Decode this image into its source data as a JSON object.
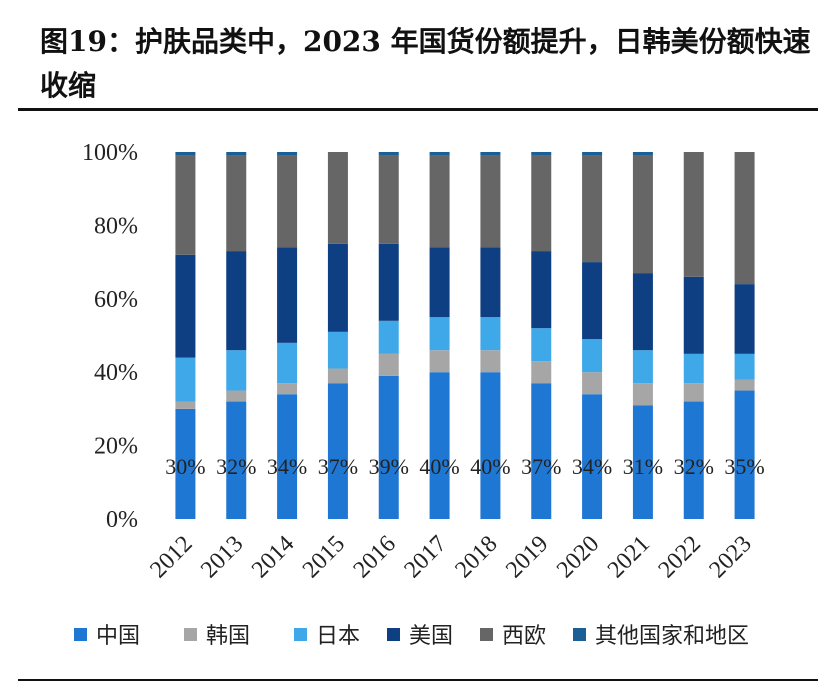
{
  "title": "图19：护肤品类中，2023 年国货份额提升，日韩美份额快速收缩",
  "chart_data": {
    "type": "bar",
    "stacked": true,
    "categories": [
      "2012",
      "2013",
      "2014",
      "2015",
      "2016",
      "2017",
      "2018",
      "2019",
      "2020",
      "2021",
      "2022",
      "2023"
    ],
    "y_ticks": [
      "0%",
      "20%",
      "40%",
      "60%",
      "80%",
      "100%"
    ],
    "ylim": [
      0,
      100
    ],
    "grid": false,
    "legend_position": "bottom",
    "series": [
      {
        "name": "中国",
        "color": "#1f77d4",
        "values": [
          30,
          32,
          34,
          37,
          39,
          40,
          40,
          37,
          34,
          31,
          32,
          35
        ]
      },
      {
        "name": "韩国",
        "color": "#a6a6a6",
        "values": [
          2,
          3,
          3,
          4,
          6,
          6,
          6,
          6,
          6,
          6,
          5,
          3
        ]
      },
      {
        "name": "日本",
        "color": "#3ea8e8",
        "values": [
          12,
          11,
          11,
          10,
          9,
          9,
          9,
          9,
          9,
          9,
          8,
          7
        ]
      },
      {
        "name": "美国",
        "color": "#0d3f82",
        "values": [
          28,
          27,
          26,
          24,
          21,
          19,
          19,
          21,
          21,
          21,
          21,
          19
        ]
      },
      {
        "name": "西欧",
        "color": "#666666",
        "values": [
          27,
          26,
          25,
          25,
          24,
          25,
          25,
          26,
          29,
          32,
          34,
          36
        ]
      },
      {
        "name": "其他国家和地区",
        "color": "#1a5f96",
        "values": [
          1,
          1,
          1,
          0,
          1,
          1,
          1,
          1,
          1,
          1,
          0,
          0
        ]
      }
    ],
    "data_labels": [
      "30%",
      "32%",
      "34%",
      "37%",
      "39%",
      "40%",
      "40%",
      "37%",
      "34%",
      "31%",
      "32%",
      "35%"
    ]
  }
}
